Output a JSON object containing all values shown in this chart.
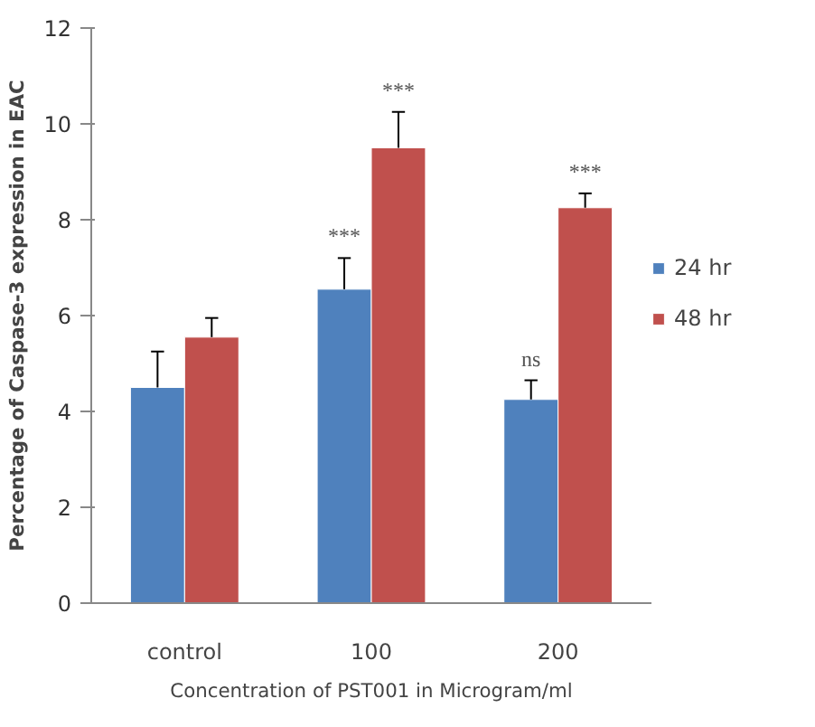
{
  "chart_data": {
    "type": "bar",
    "xlabel": "Concentration of PST001 in Microgram/ml",
    "ylabel": "Percentage of Caspase-3 expression in EAC",
    "categories": [
      "control",
      "100",
      "200"
    ],
    "series": [
      {
        "name": "24 hr",
        "color": "#4f81bd",
        "values": [
          4.5,
          6.55,
          4.25
        ],
        "errors": [
          [
            4.5,
            5.25
          ],
          [
            6.55,
            7.2
          ],
          [
            4.25,
            4.65
          ]
        ],
        "value_labels": [
          null,
          "***",
          "ns"
        ]
      },
      {
        "name": "48 hr",
        "color": "#c0504d",
        "values": [
          5.55,
          9.5,
          8.25
        ],
        "errors": [
          [
            5.55,
            5.95
          ],
          [
            9.5,
            10.25
          ],
          [
            8.25,
            8.55
          ]
        ],
        "value_labels": [
          null,
          "***",
          "***"
        ]
      }
    ],
    "ylim": [
      0,
      12
    ],
    "yticks": [
      0,
      2,
      4,
      6,
      8,
      10,
      12
    ],
    "grid": false,
    "legend": "right"
  }
}
